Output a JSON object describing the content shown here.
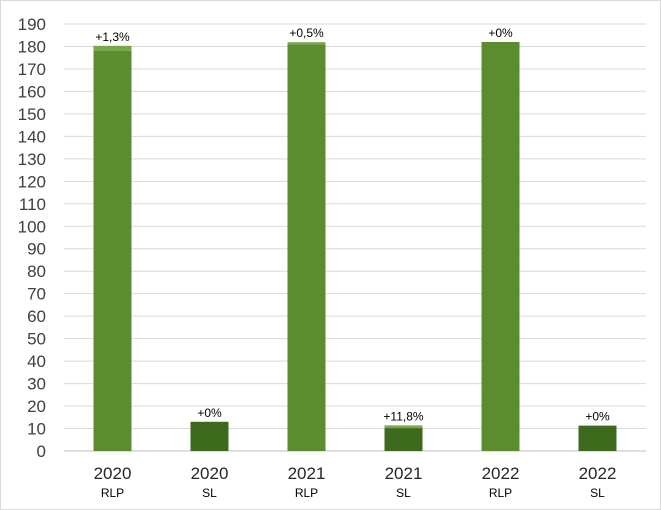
{
  "chart_data": {
    "type": "bar",
    "title": "",
    "xlabel": "",
    "ylabel": "",
    "ylim": [
      0,
      190
    ],
    "y_ticks": [
      0,
      10,
      20,
      30,
      40,
      50,
      60,
      70,
      80,
      90,
      100,
      110,
      120,
      130,
      140,
      150,
      160,
      170,
      180,
      190
    ],
    "grid": true,
    "legend": "none",
    "categories": [
      {
        "year": "2020",
        "sub": "RLP"
      },
      {
        "year": "2020",
        "sub": "SL"
      },
      {
        "year": "2021",
        "sub": "RLP"
      },
      {
        "year": "2021",
        "sub": "SL"
      },
      {
        "year": "2022",
        "sub": "RLP"
      },
      {
        "year": "2022",
        "sub": "SL"
      }
    ],
    "series": [
      {
        "values": [
          178,
          13,
          181,
          10.2,
          182,
          11.3
        ]
      },
      {
        "values": [
          2.3,
          0,
          0.9,
          1.2,
          0,
          0
        ]
      }
    ],
    "data_labels": [
      "+1,3%",
      "+0%",
      "+0,5%",
      "+11,8%",
      "+0%",
      "+0%"
    ],
    "colors": {
      "RLP": "#5b8c2e",
      "SL": "#3e6a1e",
      "increment": "#76a847",
      "grid": "#d9d9d9",
      "axis": "#bfbfbf"
    }
  }
}
